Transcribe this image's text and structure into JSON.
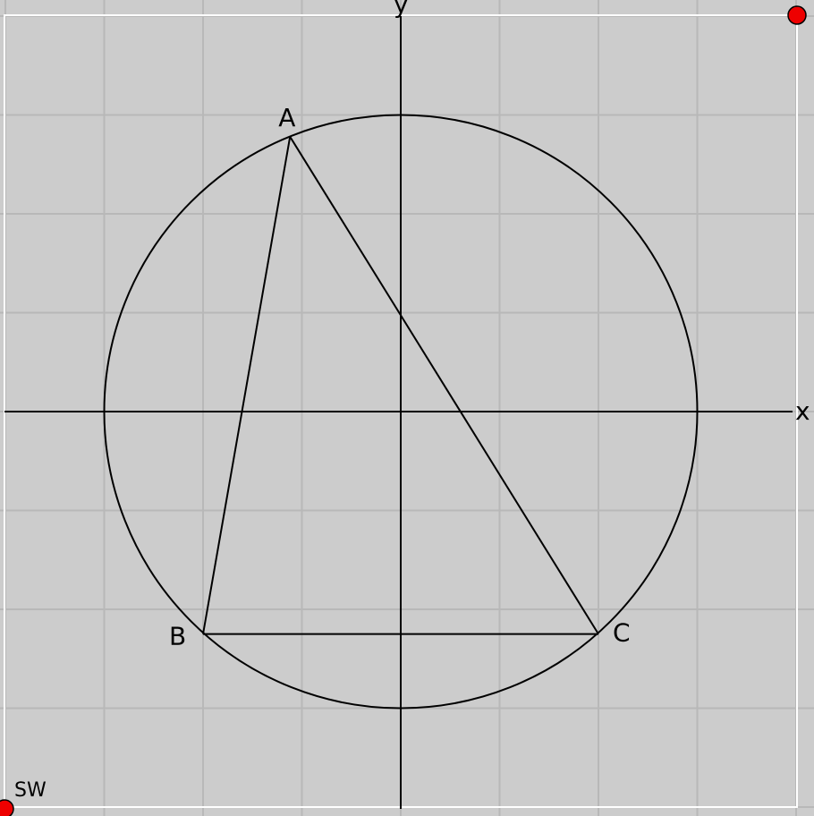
{
  "axes": {
    "x_label": "x",
    "y_label": "y"
  },
  "circle": {
    "center": [
      0,
      0
    ],
    "radius": 3
  },
  "points": {
    "A": [
      -1.12,
      2.78
    ],
    "B": [
      -2,
      -2.25
    ],
    "C": [
      2,
      -2.25
    ]
  },
  "labels": {
    "A": "A",
    "B": "B",
    "C": "C"
  },
  "corner_handles": {
    "sw_label": "SW",
    "ne_label": ""
  },
  "grid": {
    "visible": true,
    "step": 1,
    "xrange": [
      -4,
      4
    ],
    "yrange": [
      -4,
      4
    ]
  },
  "colors": {
    "background": "#cccccc",
    "grid": "#b8b8b8",
    "frame": "#ffffff",
    "stroke": "#000000",
    "handle": "#ee0000"
  }
}
